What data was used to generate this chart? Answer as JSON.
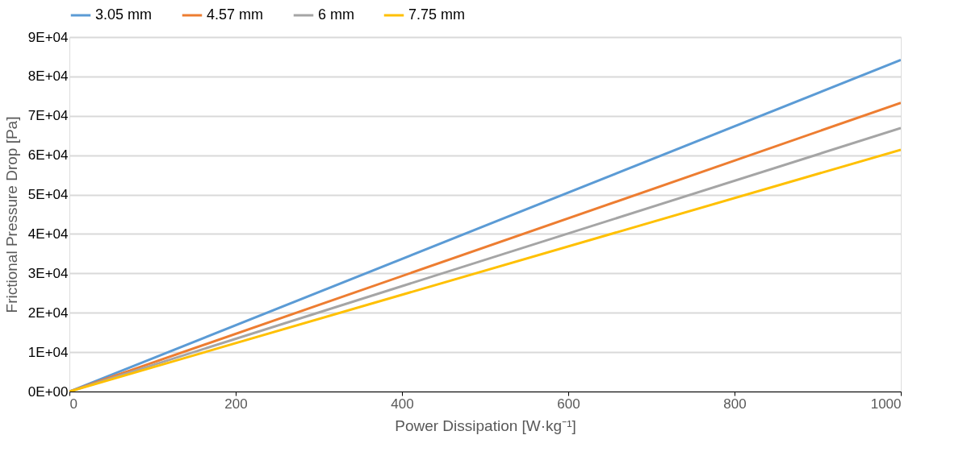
{
  "chart_data": {
    "type": "line",
    "xlabel": "Power Dissipation [W·kg⁻¹]",
    "ylabel": "Frictional Pressure Drop [Pa]",
    "x": [
      0,
      1000
    ],
    "series": [
      {
        "name": "3.05 mm",
        "color": "#5b9bd5",
        "values": [
          0,
          84200
        ]
      },
      {
        "name": "4.57 mm",
        "color": "#ed7d31",
        "values": [
          0,
          73300
        ]
      },
      {
        "name": "6 mm",
        "color": "#a5a5a5",
        "values": [
          0,
          66900
        ]
      },
      {
        "name": "7.75 mm",
        "color": "#ffc000",
        "values": [
          0,
          61400
        ]
      }
    ],
    "xlim": [
      0,
      1000
    ],
    "xticks": [
      0,
      200,
      400,
      600,
      800,
      1000
    ],
    "ylim": [
      0,
      90000
    ],
    "yticks": [
      {
        "value": 0,
        "label": "0E+00"
      },
      {
        "value": 10000,
        "label": "1E+04"
      },
      {
        "value": 20000,
        "label": "2E+04"
      },
      {
        "value": 30000,
        "label": "3E+04"
      },
      {
        "value": 40000,
        "label": "4E+04"
      },
      {
        "value": 50000,
        "label": "5E+04"
      },
      {
        "value": 60000,
        "label": "6E+04"
      },
      {
        "value": 70000,
        "label": "7E+04"
      },
      {
        "value": 80000,
        "label": "8E+04"
      },
      {
        "value": 90000,
        "label": "9E+04"
      }
    ],
    "grid": "y",
    "legend": "top",
    "marker": "none",
    "line_style": "solid"
  }
}
